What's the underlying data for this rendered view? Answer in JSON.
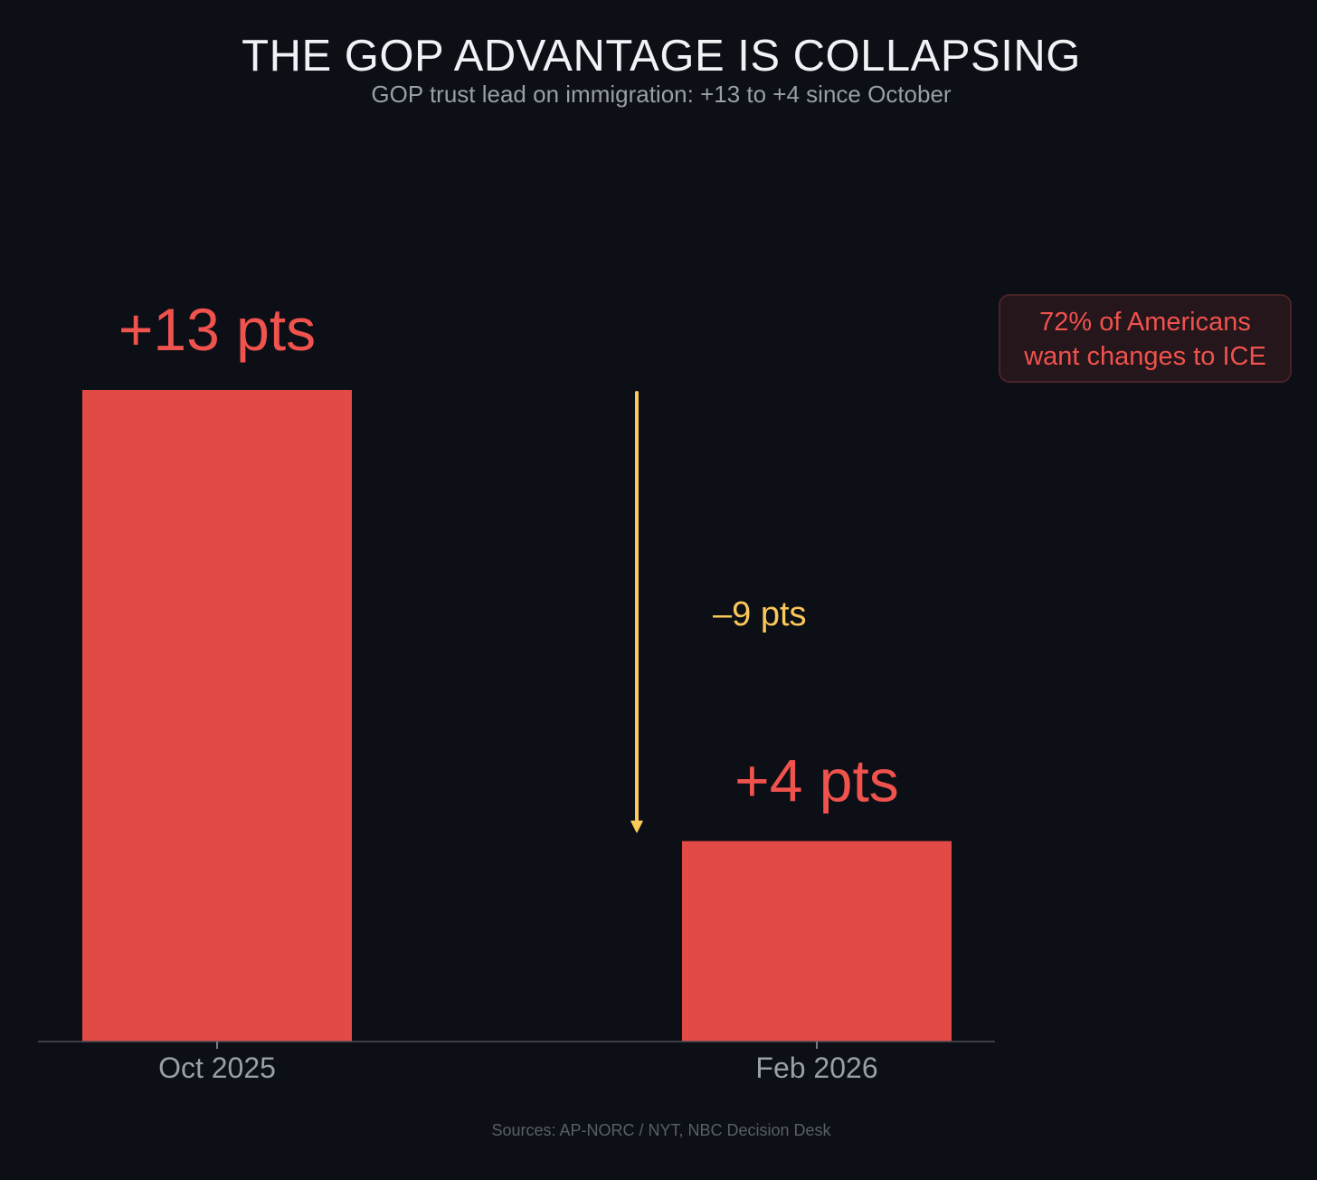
{
  "title": "THE GOP ADVANTAGE IS COLLAPSING",
  "subtitle": "GOP trust lead on immigration: +13 to +4 since October",
  "callout": {
    "line1": "72% of Americans",
    "line2": "want changes to ICE"
  },
  "sources": "Sources: AP-NORC / NYT, NBC Decision Desk",
  "colors": {
    "background": "#0d0f16",
    "bar": "#e24a45",
    "value_label": "#f0524d",
    "change_arrow": "#fbc85a",
    "axis": "#4a4d55",
    "tick_label": "#9a9ea8"
  },
  "chart_data": {
    "type": "bar",
    "categories": [
      "Oct 2025",
      "Feb 2026"
    ],
    "values": [
      13,
      4
    ],
    "value_labels": [
      "+13 pts",
      "+4 pts"
    ],
    "title": "THE GOP ADVANTAGE IS COLLAPSING",
    "subtitle": "GOP trust lead on immigration: +13 to +4 since October",
    "xlabel": "",
    "ylabel": "",
    "ylim": [
      0,
      13
    ],
    "grid": false,
    "legend": "none",
    "annotations": [
      {
        "text": "–9 pts",
        "from": 13,
        "to": 4,
        "kind": "down-arrow"
      }
    ]
  }
}
